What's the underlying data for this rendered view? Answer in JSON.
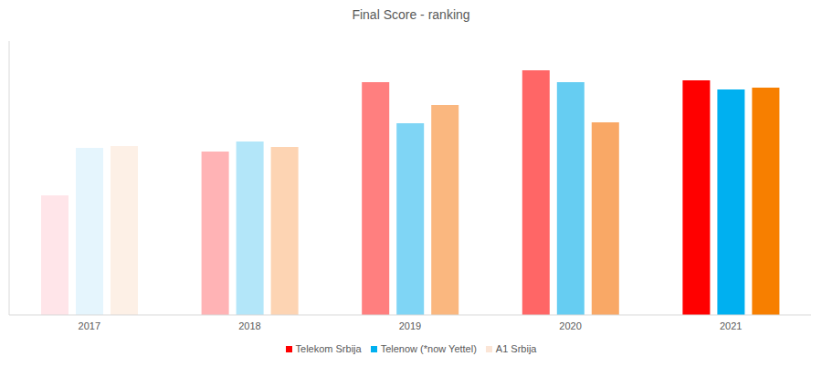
{
  "chart_data": {
    "type": "bar",
    "title": "Final Score - ranking",
    "categories": [
      "2017",
      "2018",
      "2019",
      "2020",
      "2021"
    ],
    "series": [
      {
        "name": "Telekom Srbija",
        "color": "#ff0000",
        "colors": [
          "#ffe5e9",
          "#ffb3b5",
          "#ff7f7f",
          "#ff6666",
          "#ff0000"
        ],
        "values": [
          131,
          179,
          255,
          268,
          257
        ]
      },
      {
        "name": "Telenow (*now Yettel)",
        "color": "#00b0f0",
        "colors": [
          "#e5f5fd",
          "#b3e6f9",
          "#7fd5f5",
          "#66cdf2",
          "#00b0f0"
        ],
        "values": [
          183,
          190,
          210,
          255,
          247
        ]
      },
      {
        "name": "A1 Srbija",
        "color": "#fbe5d6",
        "colors": [
          "#fdf0e6",
          "#fdd4b3",
          "#fab77f",
          "#f9a866",
          "#f77f00"
        ],
        "values": [
          185,
          184,
          230,
          211,
          249
        ]
      }
    ],
    "ylim": [
      0,
      300
    ],
    "yticks": [],
    "grid": false,
    "tick_labels": "x"
  }
}
